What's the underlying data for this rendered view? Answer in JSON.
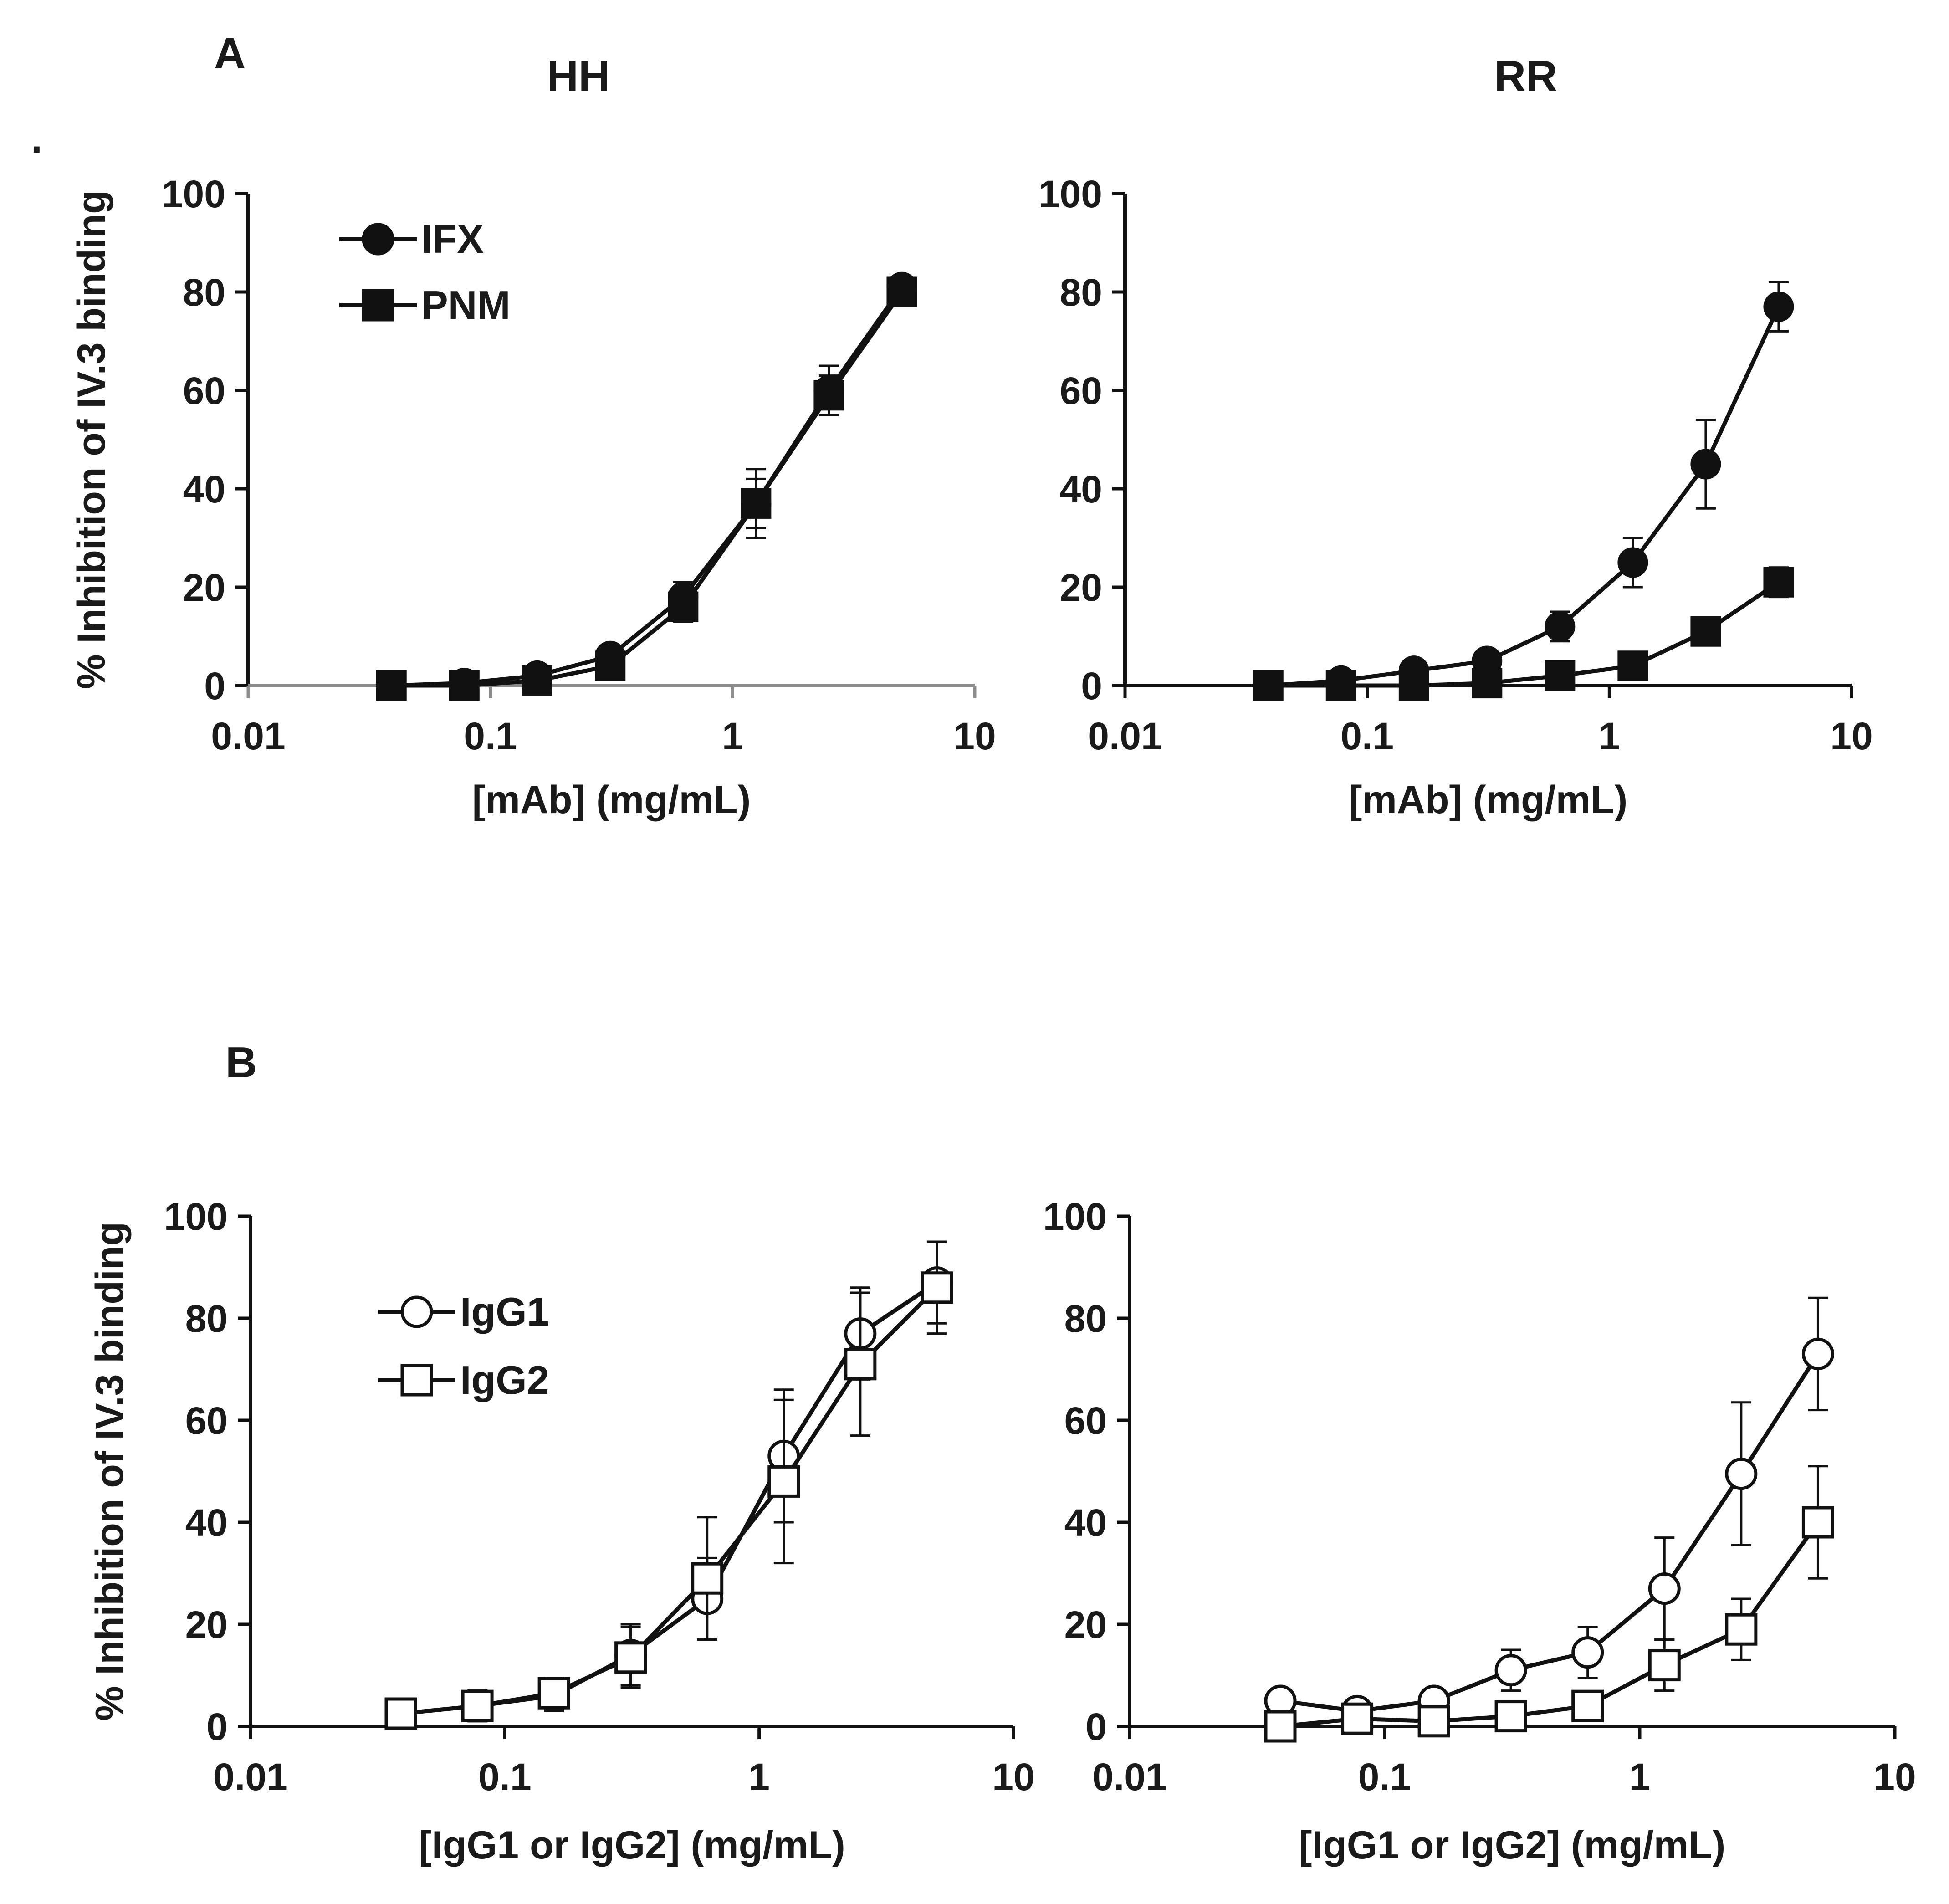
{
  "panel_labels": [
    "A",
    "B"
  ],
  "stray_mark": ".",
  "chart_data": [
    {
      "id": "A-HH",
      "type": "line",
      "title": "HH",
      "xlabel": "[mAb] (mg/mL)",
      "ylabel": "% Inhibition of IV.3 binding",
      "xscale": "log",
      "xlim": [
        0.01,
        10
      ],
      "ylim": [
        0,
        100
      ],
      "x_ticks": [
        "0.01",
        "0.1",
        "1",
        "10"
      ],
      "y_ticks": [
        "0",
        "20",
        "40",
        "60",
        "80",
        "100"
      ],
      "x": [
        0.039,
        0.078,
        0.156,
        0.3125,
        0.625,
        1.25,
        2.5,
        5
      ],
      "legend_position": "top-left",
      "series": [
        {
          "name": "IFX",
          "marker": "filled-circle",
          "values": [
            0,
            0.5,
            2,
            6,
            18,
            37,
            60,
            81
          ],
          "errors": [
            0,
            0.5,
            1,
            2,
            3,
            5,
            5,
            2
          ]
        },
        {
          "name": "PNM",
          "marker": "filled-square",
          "values": [
            0,
            0,
            1,
            4,
            16,
            37,
            59,
            80
          ],
          "errors": [
            0,
            0.5,
            1,
            2,
            3,
            7,
            4,
            2
          ]
        }
      ]
    },
    {
      "id": "A-RR",
      "type": "line",
      "title": "RR",
      "xlabel": "[mAb] (mg/mL)",
      "ylabel": "",
      "xscale": "log",
      "xlim": [
        0.01,
        10
      ],
      "ylim": [
        0,
        100
      ],
      "x_ticks": [
        "0.01",
        "0.1",
        "1",
        "10"
      ],
      "y_ticks": [
        "0",
        "20",
        "40",
        "60",
        "80",
        "100"
      ],
      "x": [
        0.039,
        0.078,
        0.156,
        0.3125,
        0.625,
        1.25,
        2.5,
        5
      ],
      "series": [
        {
          "name": "IFX",
          "marker": "filled-circle",
          "values": [
            0,
            1,
            3,
            5,
            12,
            25,
            45,
            77
          ],
          "errors": [
            0,
            0.5,
            1,
            1,
            3,
            5,
            9,
            5
          ]
        },
        {
          "name": "PNM",
          "marker": "filled-square",
          "values": [
            0,
            0,
            0,
            0.5,
            2,
            4,
            11,
            21
          ],
          "errors": [
            0,
            0,
            0,
            0.5,
            1,
            1.5,
            2,
            3
          ]
        }
      ]
    },
    {
      "id": "B-HH",
      "type": "line",
      "title": "",
      "xlabel": "[IgG1 or IgG2] (mg/mL)",
      "ylabel": "% Inhibition of IV.3 binding",
      "xscale": "log",
      "xlim": [
        0.01,
        10
      ],
      "ylim": [
        0,
        100
      ],
      "x_ticks": [
        "0.01",
        "0.1",
        "1",
        "10"
      ],
      "y_ticks": [
        "0",
        "20",
        "40",
        "60",
        "80",
        "100"
      ],
      "x": [
        0.039,
        0.078,
        0.156,
        0.3125,
        0.625,
        1.25,
        2.5,
        5
      ],
      "legend_position": "top-left",
      "series": [
        {
          "name": "IgG1",
          "marker": "open-circle",
          "values": [
            2.5,
            4,
            6,
            14,
            25,
            53,
            77,
            87
          ],
          "errors": [
            1,
            3,
            3,
            6,
            8,
            13,
            9,
            8
          ]
        },
        {
          "name": "IgG2",
          "marker": "open-square",
          "values": [
            2.5,
            4,
            6.5,
            13.5,
            29,
            48,
            71,
            86
          ],
          "errors": [
            1,
            3,
            3,
            6,
            12,
            16,
            14,
            9
          ]
        }
      ]
    },
    {
      "id": "B-RR",
      "type": "line",
      "title": "",
      "xlabel": "[IgG1 or IgG2] (mg/mL)",
      "ylabel": "",
      "xscale": "log",
      "xlim": [
        0.01,
        10
      ],
      "ylim": [
        0,
        100
      ],
      "x_ticks": [
        "0.01",
        "0.1",
        "1",
        "10"
      ],
      "y_ticks": [
        "0",
        "20",
        "40",
        "60",
        "80",
        "100"
      ],
      "x": [
        0.039,
        0.078,
        0.156,
        0.3125,
        0.625,
        1.25,
        2.5,
        5
      ],
      "series": [
        {
          "name": "IgG1",
          "marker": "open-circle",
          "values": [
            5,
            3,
            5,
            11,
            14.5,
            27,
            49.5,
            73
          ],
          "errors": [
            1,
            1,
            1,
            4,
            5,
            10,
            14,
            11
          ]
        },
        {
          "name": "IgG2",
          "marker": "open-square",
          "values": [
            0,
            1.5,
            1,
            2,
            4,
            12,
            19,
            40
          ],
          "errors": [
            0,
            1,
            1,
            2,
            2,
            5,
            6,
            11
          ]
        }
      ]
    }
  ]
}
